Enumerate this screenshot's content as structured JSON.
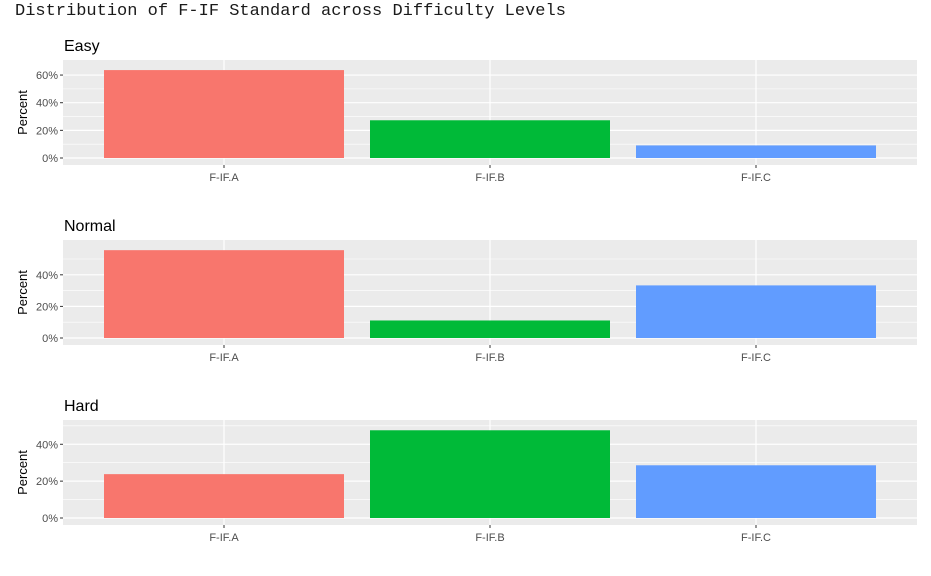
{
  "title": "Distribution of F-IF Standard across Difficulty Levels",
  "colors": {
    "F-IF.A": "#F8766D",
    "F-IF.B": "#00BA38",
    "F-IF.C": "#619CFF",
    "panel_bg": "#EBEBEB",
    "grid": "#FFFFFF"
  },
  "chart_data": [
    {
      "type": "bar",
      "title": "Easy",
      "ylabel": "Percent",
      "categories": [
        "F-IF.A",
        "F-IF.B",
        "F-IF.C"
      ],
      "values": [
        0.636,
        0.273,
        0.091
      ],
      "ylim": [
        0,
        0.68
      ],
      "yticks": [
        0,
        0.2,
        0.4,
        0.6
      ],
      "ytick_labels": [
        "0%",
        "20%",
        "40%",
        "60%"
      ],
      "grid": true
    },
    {
      "type": "bar",
      "title": "Normal",
      "ylabel": "Percent",
      "categories": [
        "F-IF.A",
        "F-IF.B",
        "F-IF.C"
      ],
      "values": [
        0.556,
        0.111,
        0.333
      ],
      "ylim": [
        0,
        0.595
      ],
      "yticks": [
        0,
        0.2,
        0.4
      ],
      "ytick_labels": [
        "0%",
        "20%",
        "40%"
      ],
      "grid": true
    },
    {
      "type": "bar",
      "title": "Hard",
      "ylabel": "Percent",
      "categories": [
        "F-IF.A",
        "F-IF.B",
        "F-IF.C"
      ],
      "values": [
        0.238,
        0.476,
        0.286
      ],
      "ylim": [
        0,
        0.51
      ],
      "yticks": [
        0,
        0.2,
        0.4
      ],
      "ytick_labels": [
        "0%",
        "20%",
        "40%"
      ],
      "grid": true
    }
  ]
}
